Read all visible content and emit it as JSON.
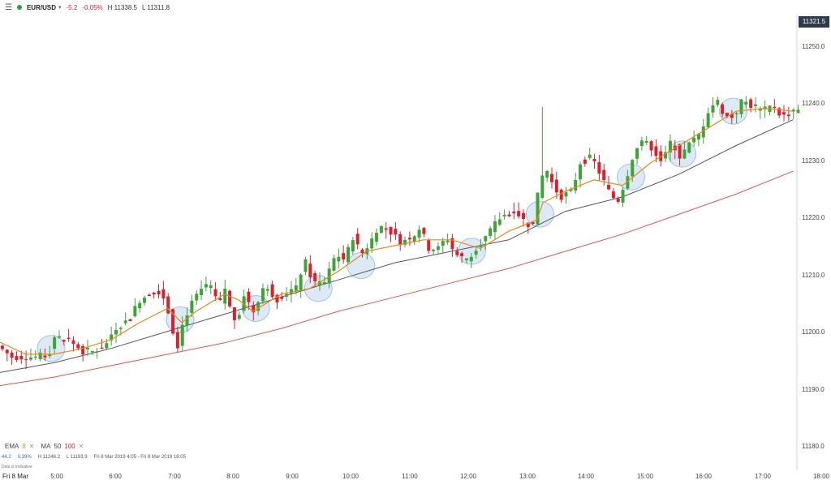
{
  "header": {
    "menu_icon": "hamburger-menu-icon",
    "symbol": "EUR/USD",
    "change": "-5.2",
    "change_pct": "-0.05%",
    "high": "H 11338.5",
    "low": "L 11311.8",
    "status_color": "#2e9e3e"
  },
  "price_tag": "11321.5",
  "indicators": {
    "ema_label": "EMA",
    "ema_period": "8",
    "ma_label": "MA",
    "ma_period1": "50",
    "ma_period2": "100"
  },
  "stats": {
    "value": "44.2",
    "pct": "0.39%",
    "high": "H 11246.2",
    "low": "L 11193.9",
    "range": "Fri 8 Mar 2019 4:05 - Fri 8 Mar 2019 18:05",
    "note": "Data is indicative"
  },
  "xaxis_date": "Fri 8 Mar",
  "chart_data": {
    "type": "candlestick",
    "y_ticks": [
      "11250.0",
      "11240.0",
      "11230.0",
      "11220.0",
      "11210.0",
      "11200.0",
      "11190.0",
      "11180.0"
    ],
    "x_ticks": [
      "5:00",
      "6:00",
      "7:00",
      "8:00",
      "9:00",
      "10:00",
      "11:00",
      "12:00",
      "13:00",
      "14:00",
      "15:00",
      "16:00",
      "17:00",
      "18:00"
    ],
    "ylim": [
      11177.2,
      11256.9
    ],
    "colors": {
      "up": "#3fa33a",
      "down": "#d9202c",
      "ema": "#e8891a",
      "ma50": "#555555",
      "ma100": "#e85050",
      "highlight": "#9ec4e6"
    },
    "series": [
      {
        "name": "EMA 8",
        "values": [
          [
            4.05,
            11199.6
          ],
          [
            4.5,
            11197.5
          ],
          [
            5,
            11197.5
          ],
          [
            5.5,
            11198.5
          ],
          [
            6,
            11200
          ],
          [
            6.5,
            11203
          ],
          [
            7,
            11205.5
          ],
          [
            7.25,
            11203
          ],
          [
            7.5,
            11205
          ],
          [
            8,
            11208
          ],
          [
            8.25,
            11207
          ],
          [
            8.5,
            11205
          ],
          [
            9,
            11208
          ],
          [
            9.5,
            11209
          ],
          [
            10,
            11212
          ],
          [
            10.5,
            11215.5
          ],
          [
            11,
            11216.5
          ],
          [
            11.5,
            11217.5
          ],
          [
            12,
            11217.5
          ],
          [
            12.5,
            11216
          ],
          [
            13,
            11219
          ],
          [
            13.5,
            11221
          ],
          [
            13.6,
            11224
          ],
          [
            14,
            11226
          ],
          [
            14.5,
            11228
          ],
          [
            15,
            11227
          ],
          [
            15.5,
            11231
          ],
          [
            16,
            11234
          ],
          [
            16.5,
            11237
          ],
          [
            17,
            11240
          ],
          [
            17.5,
            11240.5
          ],
          [
            18,
            11240
          ]
        ]
      },
      {
        "name": "MA 50",
        "values": [
          [
            4.05,
            11194.3
          ],
          [
            5,
            11196
          ],
          [
            6,
            11198.5
          ],
          [
            7,
            11201.5
          ],
          [
            8,
            11204.5
          ],
          [
            9,
            11207.5
          ],
          [
            10,
            11210.5
          ],
          [
            11,
            11213.5
          ],
          [
            12,
            11215.5
          ],
          [
            13,
            11217.5
          ],
          [
            14,
            11222.5
          ],
          [
            15,
            11225
          ],
          [
            16,
            11229
          ],
          [
            17,
            11234
          ],
          [
            18,
            11238.5
          ]
        ]
      },
      {
        "name": "MA 100",
        "values": [
          [
            4.05,
            11192
          ],
          [
            5,
            11193.5
          ],
          [
            6,
            11195.5
          ],
          [
            7,
            11197.5
          ],
          [
            8,
            11199.5
          ],
          [
            9,
            11202
          ],
          [
            10,
            11205
          ],
          [
            11,
            11207.5
          ],
          [
            12,
            11210
          ],
          [
            13,
            11212.5
          ],
          [
            14,
            11215.5
          ],
          [
            15,
            11218.5
          ],
          [
            16,
            11222
          ],
          [
            17,
            11225.5
          ],
          [
            18,
            11229.5
          ]
        ]
      }
    ],
    "highlights": [
      {
        "t": 4.95,
        "price": 11198.5
      },
      {
        "t": 7.22,
        "price": 11203.5
      },
      {
        "t": 8.55,
        "price": 11205.5
      },
      {
        "t": 9.65,
        "price": 11209
      },
      {
        "t": 10.4,
        "price": 11213
      },
      {
        "t": 12.35,
        "price": 11215.5
      },
      {
        "t": 13.55,
        "price": 11222
      },
      {
        "t": 15.15,
        "price": 11228.5
      },
      {
        "t": 16.05,
        "price": 11232.5
      },
      {
        "t": 16.95,
        "price": 11240
      }
    ],
    "checkpoints": [
      [
        4.05,
        11199
      ],
      [
        4.3,
        11197
      ],
      [
        4.7,
        11197
      ],
      [
        4.95,
        11197.5
      ],
      [
        5.05,
        11200.5
      ],
      [
        5.3,
        11200
      ],
      [
        5.6,
        11197.5
      ],
      [
        5.95,
        11199
      ],
      [
        6.1,
        11202
      ],
      [
        6.35,
        11203.5
      ],
      [
        6.55,
        11207
      ],
      [
        6.85,
        11209
      ],
      [
        7.0,
        11207
      ],
      [
        7.12,
        11202
      ],
      [
        7.22,
        11199
      ],
      [
        7.32,
        11203.5
      ],
      [
        7.5,
        11207
      ],
      [
        7.75,
        11210
      ],
      [
        7.95,
        11206
      ],
      [
        8.05,
        11209
      ],
      [
        8.15,
        11205
      ],
      [
        8.25,
        11203
      ],
      [
        8.38,
        11208
      ],
      [
        8.55,
        11205
      ],
      [
        8.75,
        11210
      ],
      [
        8.95,
        11207
      ],
      [
        9.15,
        11208.5
      ],
      [
        9.3,
        11209
      ],
      [
        9.45,
        11214
      ],
      [
        9.6,
        11210
      ],
      [
        9.8,
        11210
      ],
      [
        10.0,
        11215
      ],
      [
        10.15,
        11214
      ],
      [
        10.3,
        11218
      ],
      [
        10.45,
        11215
      ],
      [
        10.6,
        11217
      ],
      [
        10.75,
        11220
      ],
      [
        10.95,
        11219
      ],
      [
        11.15,
        11217
      ],
      [
        11.35,
        11218
      ],
      [
        11.5,
        11220
      ],
      [
        11.6,
        11216
      ],
      [
        11.8,
        11216
      ],
      [
        11.95,
        11218
      ],
      [
        12.1,
        11215
      ],
      [
        12.3,
        11214
      ],
      [
        12.45,
        11216
      ],
      [
        12.65,
        11218
      ],
      [
        12.85,
        11221
      ],
      [
        13.0,
        11222
      ],
      [
        13.12,
        11223
      ],
      [
        13.3,
        11221
      ],
      [
        13.45,
        11219.5
      ],
      [
        13.6,
        11228
      ],
      [
        13.7,
        11230
      ],
      [
        13.82,
        11227
      ],
      [
        13.95,
        11225
      ],
      [
        14.15,
        11226
      ],
      [
        14.3,
        11231
      ],
      [
        14.5,
        11232
      ],
      [
        14.65,
        11229
      ],
      [
        14.8,
        11226
      ],
      [
        14.95,
        11224
      ],
      [
        15.1,
        11228
      ],
      [
        15.25,
        11233
      ],
      [
        15.45,
        11235
      ],
      [
        15.6,
        11233
      ],
      [
        15.75,
        11231
      ],
      [
        15.9,
        11235
      ],
      [
        16.05,
        11232
      ],
      [
        16.2,
        11234
      ],
      [
        16.4,
        11236
      ],
      [
        16.55,
        11240
      ],
      [
        16.7,
        11242
      ],
      [
        16.85,
        11239
      ],
      [
        17.0,
        11239
      ],
      [
        17.15,
        11242
      ],
      [
        17.3,
        11241
      ],
      [
        17.5,
        11240
      ],
      [
        17.7,
        11241
      ],
      [
        17.85,
        11239
      ],
      [
        18.05,
        11240
      ]
    ]
  }
}
